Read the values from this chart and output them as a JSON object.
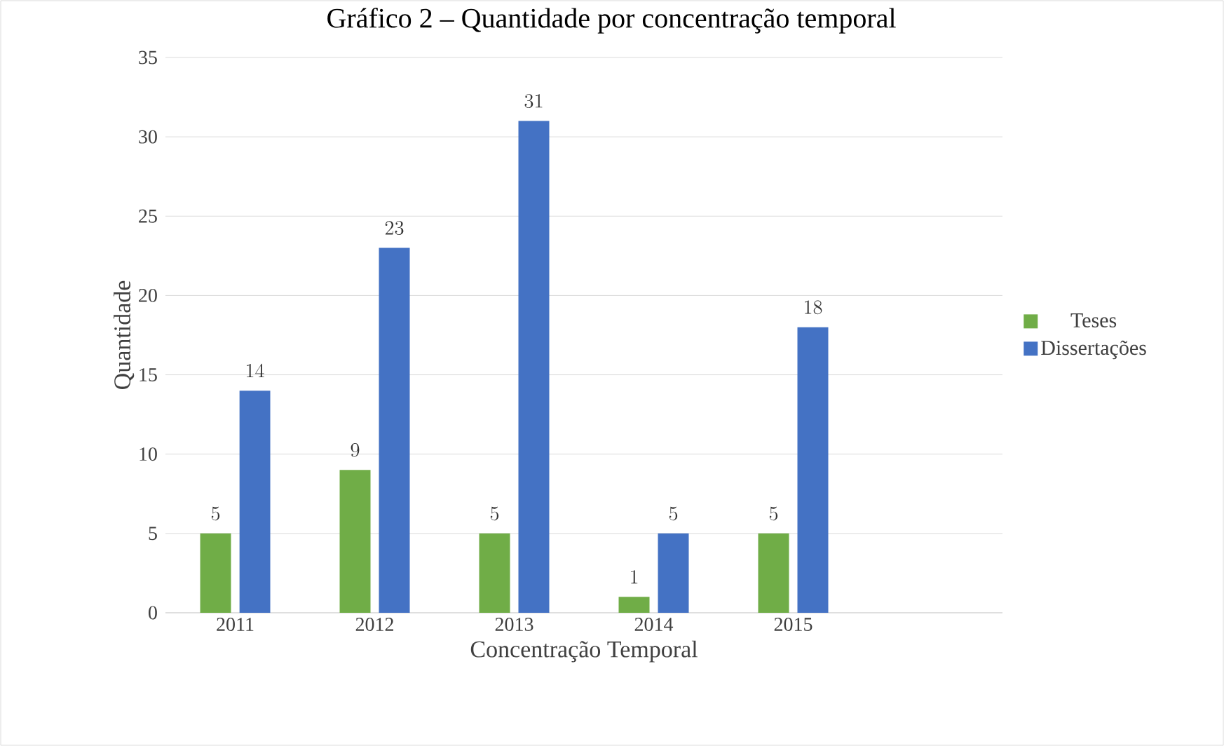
{
  "chart_data": {
    "type": "bar",
    "title": "Gráfico 2 – Quantidade por concentração temporal",
    "xlabel": "Concentração Temporal",
    "ylabel": "Quantidade",
    "categories": [
      "2011",
      "2012",
      "2013",
      "2014",
      "2015",
      null
    ],
    "series": [
      {
        "name": "Teses",
        "color": "#70ad47",
        "values": [
          5,
          9,
          5,
          1,
          5,
          null
        ]
      },
      {
        "name": "Dissertações",
        "color": "#4472c4",
        "values": [
          14,
          23,
          31,
          5,
          18,
          null
        ]
      }
    ],
    "ylim": [
      0,
      35
    ],
    "yticks": [
      0,
      5,
      10,
      15,
      20,
      25,
      30,
      35
    ],
    "grid": "y",
    "legend": "right",
    "data_labels": true
  }
}
